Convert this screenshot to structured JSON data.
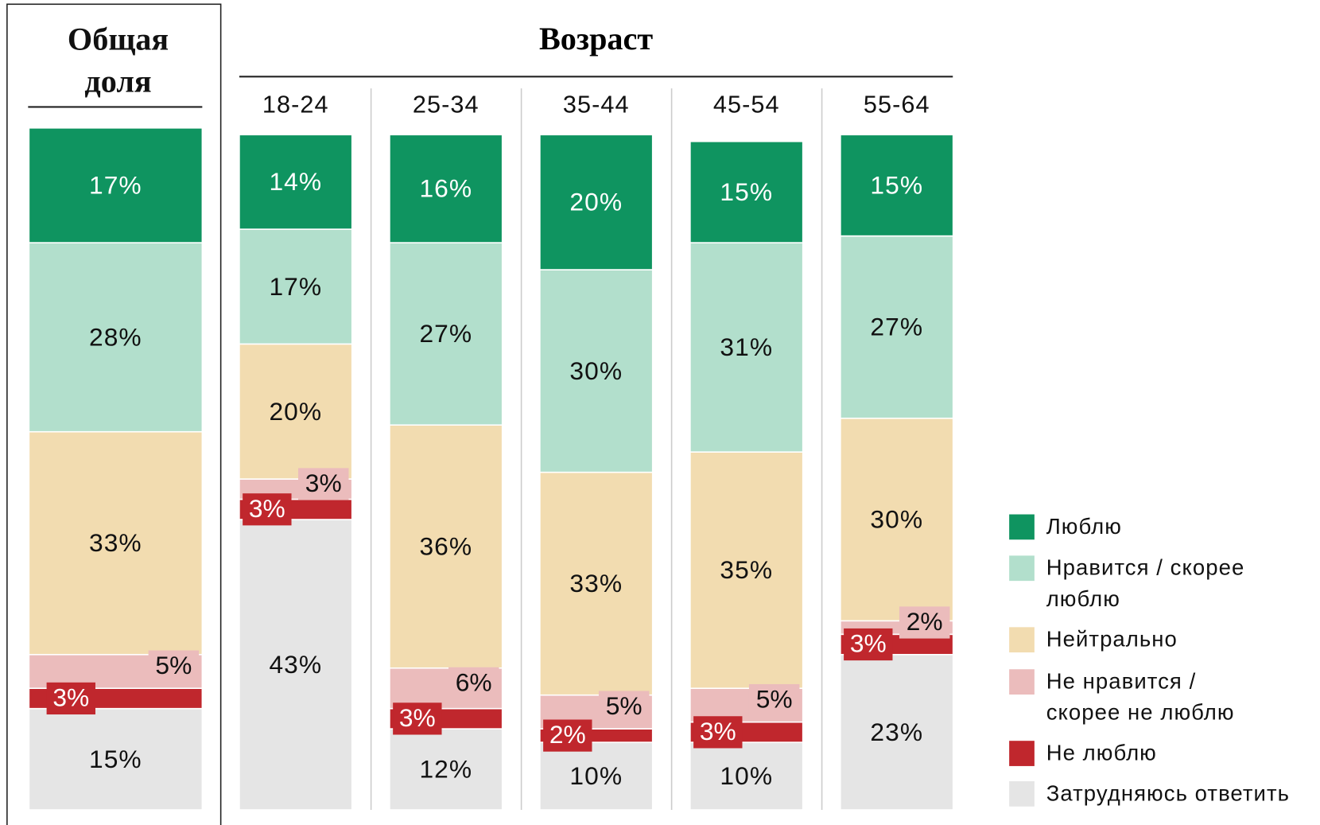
{
  "chart_data": {
    "type": "bar",
    "stacked": true,
    "group_title": "Возраст",
    "categories": [
      "Общая доля",
      "18-24",
      "25-34",
      "35-44",
      "45-54",
      "55-64"
    ],
    "ylim": [
      0,
      100
    ],
    "series": [
      {
        "name": "Люблю",
        "color": "#0f9460",
        "values": [
          17,
          14,
          16,
          20,
          15,
          15
        ],
        "value_labels": [
          "17%",
          "14%",
          "16%",
          "20%",
          "15%",
          "15%"
        ]
      },
      {
        "name": "Нравится / скорее люблю",
        "color": "#b2dfcc",
        "values": [
          28,
          17,
          27,
          30,
          31,
          27
        ],
        "value_labels": [
          "28%",
          "17%",
          "27%",
          "30%",
          "31%",
          "27%"
        ]
      },
      {
        "name": "Нейтрально",
        "color": "#f2dcb0",
        "values": [
          33,
          20,
          36,
          33,
          35,
          30
        ],
        "value_labels": [
          "33%",
          "20%",
          "36%",
          "33%",
          "35%",
          "30%"
        ]
      },
      {
        "name": "Не нравится / скорее не люблю",
        "color": "#ebbcbc",
        "values": [
          5,
          3,
          6,
          5,
          5,
          2
        ],
        "value_labels": [
          "5%",
          "3%",
          "6%",
          "5%",
          "5%",
          "2%"
        ]
      },
      {
        "name": "Не люблю",
        "color": "#c0272d",
        "values": [
          3,
          3,
          3,
          2,
          3,
          3
        ],
        "value_labels": [
          "3%",
          "3%",
          "3%",
          "2%",
          "3%",
          "3%"
        ]
      },
      {
        "name": "Затрудняюсь ответить",
        "color": "#e5e5e5",
        "values": [
          15,
          43,
          12,
          10,
          10,
          23
        ],
        "value_labels": [
          "15%",
          "43%",
          "12%",
          "10%",
          "10%",
          "23%"
        ]
      }
    ]
  }
}
